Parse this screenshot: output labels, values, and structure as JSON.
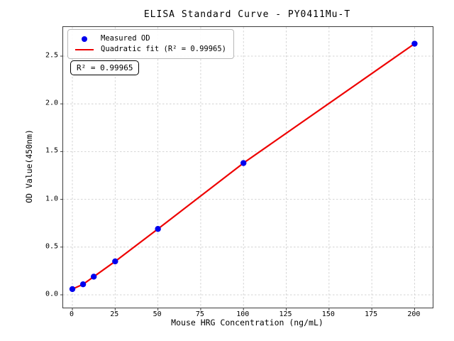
{
  "chart_data": {
    "type": "scatter",
    "title": "ELISA Standard Curve - PY0411Mu-T",
    "xlabel": "Mouse HRG Concentration (ng/mL)",
    "ylabel": "OD Value(450nm)",
    "annotation": "R² = 0.99965",
    "r_squared": 0.99965,
    "xlim": [
      -5.4,
      210.6
    ],
    "ylim": [
      -0.134,
      2.805
    ],
    "x_ticks": [
      0,
      25,
      50,
      75,
      100,
      125,
      150,
      175,
      200
    ],
    "y_ticks": [
      0.0,
      0.5,
      1.0,
      1.5,
      2.0,
      2.5
    ],
    "grid": true,
    "grid_style": "dashed",
    "legend_position": "upper-left",
    "x": [
      0,
      6.25,
      12.5,
      25,
      50,
      100,
      200
    ],
    "series": [
      {
        "name": "Measured OD",
        "type": "scatter",
        "marker": "circle",
        "color": "#0000ee",
        "values": [
          0.06,
          0.11,
          0.19,
          0.35,
          0.69,
          1.38,
          2.63
        ]
      },
      {
        "name": "Quadratic fit (R² = 0.99965)",
        "type": "line",
        "color": "#ee0000",
        "values": [
          0.06,
          0.11,
          0.19,
          0.35,
          0.69,
          1.38,
          2.63
        ]
      }
    ],
    "colors": {
      "points": "#0000ee",
      "fit_line": "#ee0000",
      "grid": "#c9c9c9",
      "spine": "#3c3c3c",
      "background": "#ffffff"
    }
  }
}
